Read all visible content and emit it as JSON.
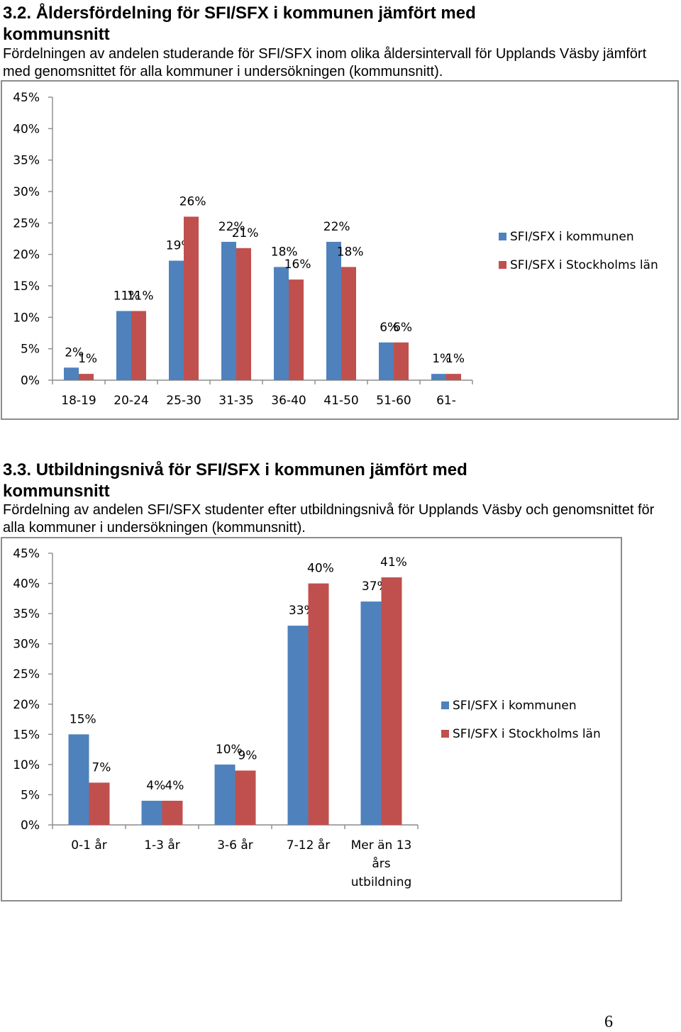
{
  "section1": {
    "heading": "3.2. Åldersfördelning för SFI/SFX i kommunen jämfört med kommunsnitt",
    "intro": "Fördelningen av andelen studerande för SFI/SFX inom olika åldersintervall för Upplands Väsby jämfört med genomsnittet för alla kommuner i undersökningen (kommunsnitt)."
  },
  "section2": {
    "heading": "3.3. Utbildningsnivå för SFI/SFX i kommunen jämfört med kommunsnitt",
    "intro": "Fördelning av andelen SFI/SFX studenter efter utbildningsnivå för Upplands Väsby och genomsnittet för alla kommuner i undersökningen (kommunsnitt)."
  },
  "colors": {
    "series1": "#4f81bd",
    "series2": "#c0504d"
  },
  "chart_data": [
    {
      "type": "bar",
      "title": "",
      "xlabel": "",
      "ylabel": "",
      "ylim": [
        0,
        0.45
      ],
      "ytick_step": 0.05,
      "yticks": [
        "0%",
        "5%",
        "10%",
        "15%",
        "20%",
        "25%",
        "30%",
        "35%",
        "40%",
        "45%"
      ],
      "grid": false,
      "legend": "right",
      "categories": [
        "18-19",
        "20-24",
        "25-30",
        "31-35",
        "36-40",
        "41-50",
        "51-60",
        "61-"
      ],
      "series": [
        {
          "name": "SFI/SFX i kommunen",
          "values": [
            0.02,
            0.11,
            0.19,
            0.22,
            0.18,
            0.22,
            0.06,
            0.01
          ],
          "labels": [
            "2%",
            "11%",
            "19%",
            "22%",
            "18%",
            "22%",
            "6%",
            "1%"
          ]
        },
        {
          "name": "SFI/SFX i Stockholms län",
          "values": [
            0.01,
            0.11,
            0.26,
            0.21,
            0.16,
            0.18,
            0.06,
            0.01
          ],
          "labels": [
            "1%",
            "11%",
            "26%",
            "21%",
            "16%",
            "18%",
            "6%",
            "1%"
          ]
        }
      ]
    },
    {
      "type": "bar",
      "title": "",
      "xlabel": "",
      "ylabel": "",
      "ylim": [
        0,
        0.45
      ],
      "ytick_step": 0.05,
      "yticks": [
        "0%",
        "5%",
        "10%",
        "15%",
        "20%",
        "25%",
        "30%",
        "35%",
        "40%",
        "45%"
      ],
      "grid": false,
      "legend": "right",
      "categories": [
        "0-1 år",
        "1-3 år",
        "3-6 år",
        "7-12 år",
        "Mer än 13 års utbildning"
      ],
      "series": [
        {
          "name": "SFI/SFX i kommunen",
          "values": [
            0.15,
            0.04,
            0.1,
            0.33,
            0.37
          ],
          "labels": [
            "15%",
            "4%",
            "10%",
            "33%",
            "37%"
          ]
        },
        {
          "name": "SFI/SFX i Stockholms län",
          "values": [
            0.07,
            0.04,
            0.09,
            0.4,
            0.41
          ],
          "labels": [
            "7%",
            "4%",
            "9%",
            "40%",
            "41%"
          ]
        }
      ]
    }
  ],
  "page_number": "6"
}
